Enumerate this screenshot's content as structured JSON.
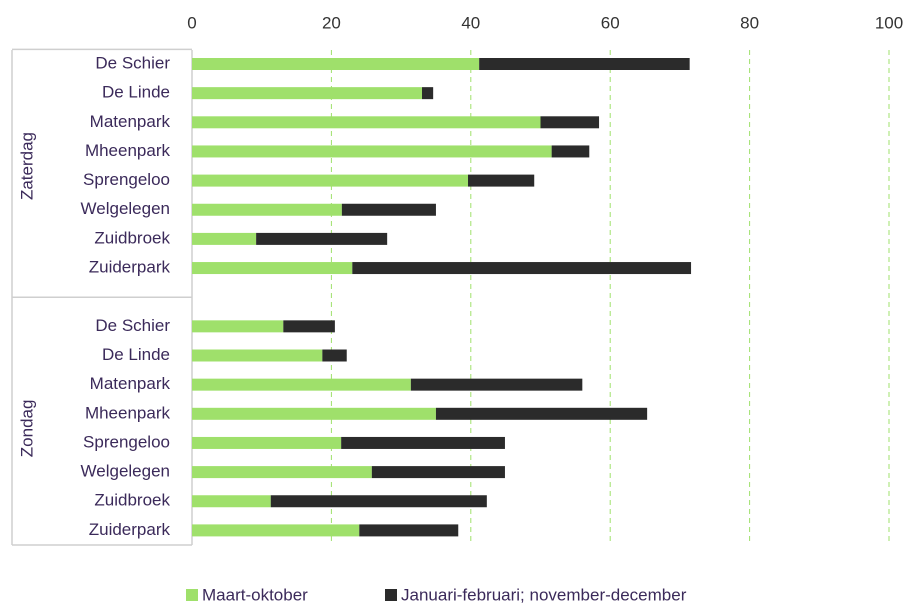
{
  "chart_data": {
    "type": "stacked-bar-horizontal",
    "groups": [
      {
        "label": "Zaterdag",
        "categories": [
          "De Schier",
          "De Linde",
          "Matenpark",
          "Mheenpark",
          "Sprengeloo",
          "Welgelegen",
          "Zuidbroek",
          "Zuiderpark"
        ]
      },
      {
        "label": "Zondag",
        "categories": [
          "De Schier",
          "De Linde",
          "Matenpark",
          "Mheenpark",
          "Sprengeloo",
          "Welgelegen",
          "Zuidbroek",
          "Zuiderpark"
        ]
      }
    ],
    "series": [
      {
        "name": "Maart-oktober",
        "color": "#9fe06b",
        "values": [
          [
            41.2,
            33,
            50,
            51.6,
            39.6,
            21.5,
            9.2,
            23
          ],
          [
            13.1,
            18.7,
            31.4,
            35,
            21.4,
            25.8,
            11.3,
            24
          ]
        ]
      },
      {
        "name": "Januari-februari; november-december",
        "color": "#2b2b2b",
        "values": [
          [
            30.2,
            1.6,
            8.4,
            5.4,
            9.5,
            13.5,
            18.8,
            48.6
          ],
          [
            7.4,
            3.5,
            24.6,
            30.3,
            23.5,
            19.1,
            31,
            14.2
          ]
        ]
      }
    ],
    "xlim": [
      0,
      100
    ],
    "xticks": [
      0,
      20,
      40,
      60,
      80,
      100
    ],
    "grid": true,
    "legend": "bottom"
  }
}
